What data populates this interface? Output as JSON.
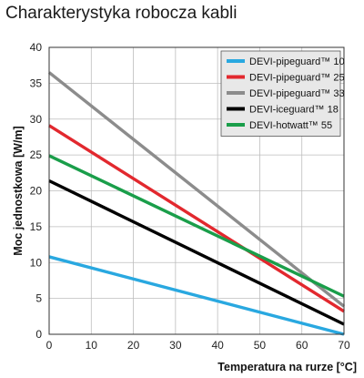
{
  "chart_data": {
    "type": "line",
    "title": "Charakterystyka robocza kabli",
    "xlabel": "Temperatura na rurze [°C]",
    "ylabel": "Moc jednostkowa [W/m]",
    "xlim": [
      0,
      70
    ],
    "ylim": [
      0,
      40
    ],
    "xticks": [
      0,
      10,
      20,
      30,
      40,
      50,
      60,
      70
    ],
    "yticks": [
      0,
      5,
      10,
      15,
      20,
      25,
      30,
      35,
      40
    ],
    "grid": true,
    "legend_position": "top-right",
    "series": [
      {
        "name": "DEVI-pipeguard™ 10",
        "color": "#29a8e0",
        "x": [
          0,
          70
        ],
        "y": [
          10.8,
          0
        ]
      },
      {
        "name": "DEVI-pipeguard™ 25",
        "color": "#e2282e",
        "x": [
          0,
          70
        ],
        "y": [
          29.1,
          3.2
        ]
      },
      {
        "name": "DEVI-pipeguard™ 33",
        "color": "#8c8c8c",
        "x": [
          0,
          70
        ],
        "y": [
          36.5,
          3.9
        ]
      },
      {
        "name": "DEVI-iceguard™ 18",
        "color": "#000000",
        "x": [
          0,
          70
        ],
        "y": [
          21.4,
          1.4
        ]
      },
      {
        "name": "DEVI-hotwatt™ 55",
        "color": "#1a9e4a",
        "x": [
          0,
          70
        ],
        "y": [
          24.9,
          5.3
        ]
      }
    ]
  }
}
